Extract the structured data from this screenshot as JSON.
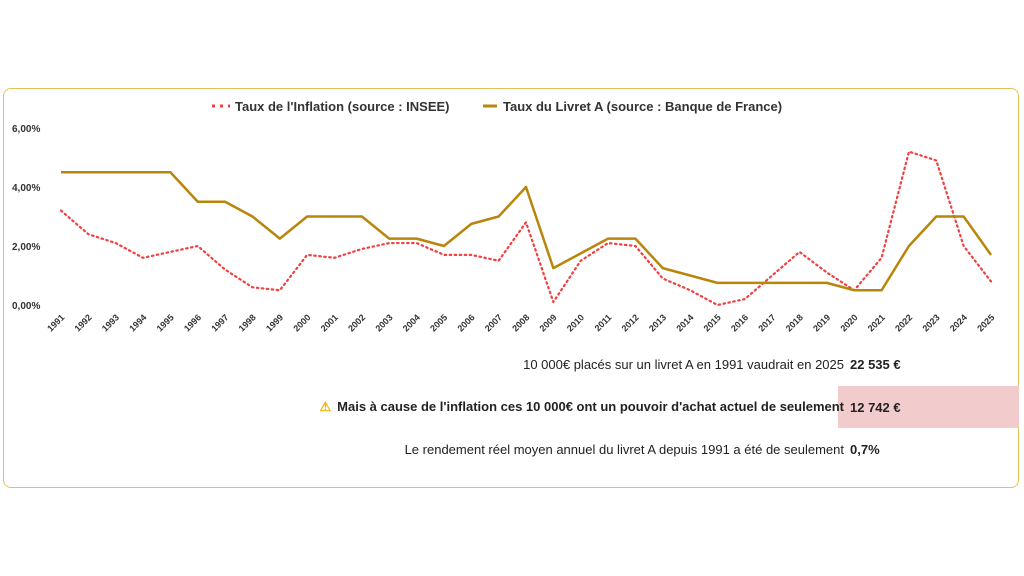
{
  "chart_data": {
    "type": "line",
    "x": [
      "1991",
      "1992",
      "1993",
      "1994",
      "1995",
      "1996",
      "1997",
      "1998",
      "1999",
      "2000",
      "2001",
      "2002",
      "2003",
      "2004",
      "2005",
      "2006",
      "2007",
      "2008",
      "2009",
      "2010",
      "2011",
      "2012",
      "2013",
      "2014",
      "2015",
      "2016",
      "2017",
      "2018",
      "2019",
      "2020",
      "2021",
      "2022",
      "2023",
      "2024",
      "2025"
    ],
    "series": [
      {
        "name": "Taux de l'Inflation (source : INSEE)",
        "color": "#f04040",
        "style": "dotted",
        "values": [
          3.2,
          2.4,
          2.1,
          1.6,
          1.8,
          2.0,
          1.2,
          0.6,
          0.5,
          1.7,
          1.6,
          1.9,
          2.1,
          2.1,
          1.7,
          1.7,
          1.5,
          2.8,
          0.1,
          1.5,
          2.1,
          2.0,
          0.9,
          0.5,
          0.0,
          0.2,
          1.0,
          1.8,
          1.1,
          0.5,
          1.6,
          5.2,
          4.9,
          2.0,
          0.8
        ]
      },
      {
        "name": "Taux du Livret A (source : Banque de France)",
        "color": "#b8860b",
        "style": "solid",
        "values": [
          4.5,
          4.5,
          4.5,
          4.5,
          4.5,
          3.5,
          3.5,
          3.0,
          2.25,
          3.0,
          3.0,
          3.0,
          2.25,
          2.25,
          2.0,
          2.75,
          3.0,
          4.0,
          1.25,
          1.75,
          2.25,
          2.25,
          1.25,
          1.0,
          0.75,
          0.75,
          0.75,
          0.75,
          0.75,
          0.5,
          0.5,
          2.0,
          3.0,
          3.0,
          1.7
        ]
      }
    ],
    "yticks": [
      "0,00%",
      "2,00%",
      "4,00%",
      "6,00%"
    ],
    "ylim": [
      0,
      6
    ],
    "legend": "top",
    "grid": false
  },
  "summary": {
    "line1_label": "10 000€ placés sur un livret A en 1991 vaudrait en 2025",
    "line1_value": "22 535 €",
    "line2_label": "Mais à cause de l'inflation ces 10 000€ ont un pouvoir d'achat actuel de seulement",
    "line2_value": "12 742 €",
    "line3_label": "Le rendement réel moyen annuel du livret A depuis 1991 a été de seulement",
    "line3_value": "0,7%",
    "warning_icon": "warning-icon"
  }
}
